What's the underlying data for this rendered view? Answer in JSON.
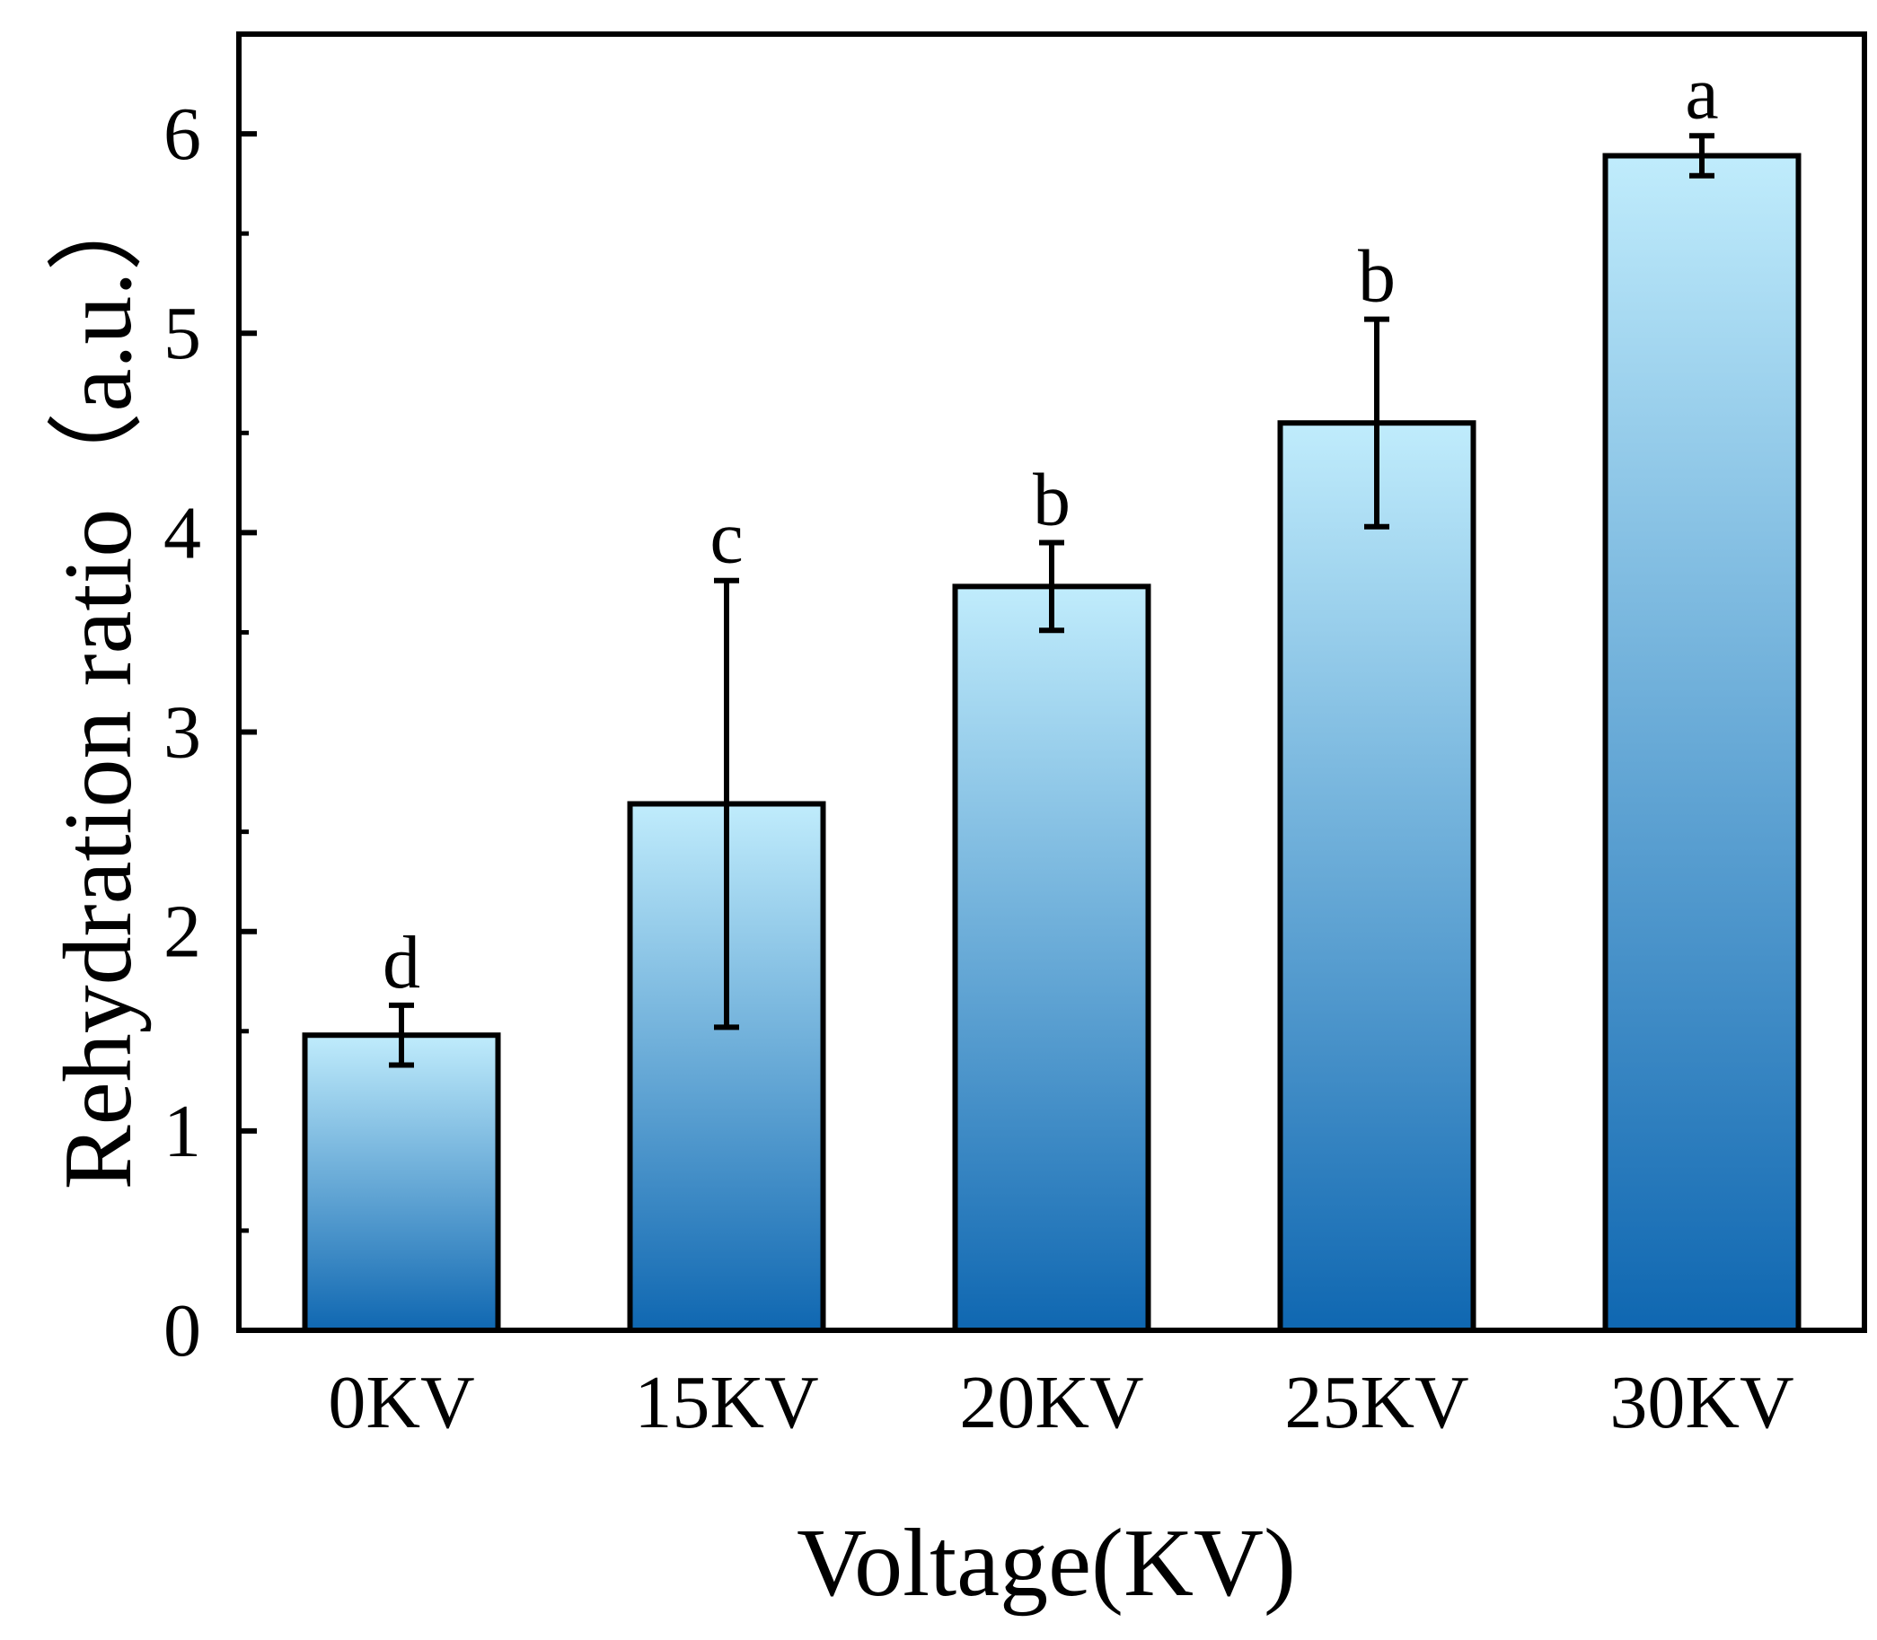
{
  "chart_data": {
    "type": "bar",
    "title": "",
    "xlabel": "Voltage(KV)",
    "ylabel": "Rehydration ratio（a.u.）",
    "categories": [
      "0KV",
      "15KV",
      "20KV",
      "25KV",
      "30KV"
    ],
    "values": [
      1.48,
      2.64,
      3.73,
      4.55,
      5.89
    ],
    "errors": [
      0.15,
      1.12,
      0.22,
      0.52,
      0.1
    ],
    "significance": [
      "d",
      "c",
      "b",
      "b",
      "a"
    ],
    "ylim": [
      0,
      6.5
    ],
    "yticks": [
      0,
      1,
      2,
      3,
      4,
      5,
      6
    ],
    "grid": false,
    "legend": "none",
    "colors": {
      "bar_top": "#c0ecfc",
      "bar_bottom": "#0f67b1",
      "outline": "#000000"
    }
  }
}
